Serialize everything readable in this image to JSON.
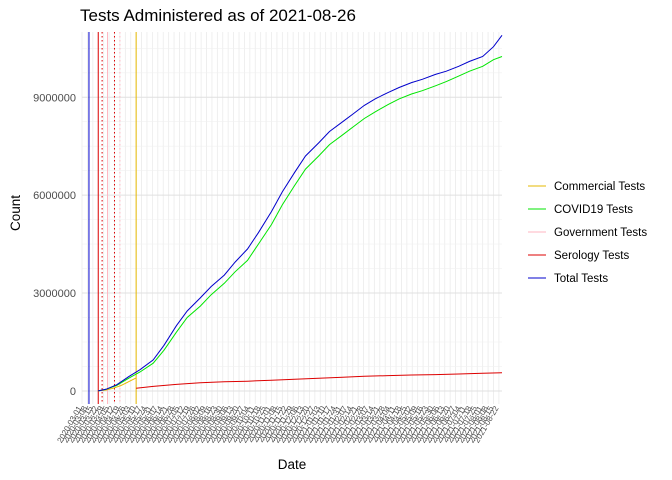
{
  "chart_data": {
    "type": "line",
    "title": "Tests Administered as of 2021-08-26",
    "xlabel": "Date",
    "ylabel": "Count",
    "x_range": [
      "2020-03-01",
      "2021-08-26"
    ],
    "ylim": [
      -400000,
      11000000
    ],
    "yticks": [
      {
        "value": 0,
        "label": "0"
      },
      {
        "value": 3000000,
        "label": "3000000"
      },
      {
        "value": 6000000,
        "label": "6000000"
      },
      {
        "value": 9000000,
        "label": "9000000"
      }
    ],
    "grid": true,
    "legend_position": "right",
    "series": [
      {
        "name": "Commercial Tests",
        "color": "#e6b800",
        "x": [
          "2020-03-22",
          "2020-04-01",
          "2020-04-10",
          "2020-04-20",
          "2020-04-30",
          "2020-05-10"
        ],
        "y": [
          0,
          30000,
          80000,
          160000,
          280000,
          400000
        ]
      },
      {
        "name": "COVID19 Tests",
        "color": "#00e600",
        "x": [
          "2020-03-22",
          "2020-04-01",
          "2020-04-15",
          "2020-05-01",
          "2020-05-15",
          "2020-06-01",
          "2020-06-15",
          "2020-07-01",
          "2020-07-15",
          "2020-08-01",
          "2020-08-15",
          "2020-09-01",
          "2020-09-15",
          "2020-10-01",
          "2020-10-15",
          "2020-11-01",
          "2020-11-15",
          "2020-12-01",
          "2020-12-15",
          "2021-01-01",
          "2021-01-15",
          "2021-02-01",
          "2021-02-15",
          "2021-03-01",
          "2021-03-15",
          "2021-04-01",
          "2021-04-15",
          "2021-05-01",
          "2021-05-15",
          "2021-06-01",
          "2021-06-15",
          "2021-07-01",
          "2021-07-15",
          "2021-08-01",
          "2021-08-15",
          "2021-08-26"
        ],
        "y": [
          0,
          50000,
          170000,
          400000,
          580000,
          850000,
          1250000,
          1800000,
          2250000,
          2600000,
          2950000,
          3300000,
          3650000,
          4000000,
          4500000,
          5100000,
          5700000,
          6300000,
          6800000,
          7200000,
          7550000,
          7850000,
          8100000,
          8350000,
          8550000,
          8780000,
          8950000,
          9100000,
          9200000,
          9350000,
          9480000,
          9650000,
          9800000,
          9950000,
          10150000,
          10250000
        ]
      },
      {
        "name": "Government Tests",
        "color": "#ffb6c1",
        "x": [],
        "y": []
      },
      {
        "name": "Serology Tests",
        "color": "#dd0000",
        "x": [
          "2020-05-10",
          "2020-06-01",
          "2020-07-01",
          "2020-08-01",
          "2020-09-01",
          "2020-10-01",
          "2020-11-01",
          "2020-12-01",
          "2021-01-01",
          "2021-02-01",
          "2021-03-01",
          "2021-04-01",
          "2021-05-01",
          "2021-06-01",
          "2021-07-01",
          "2021-08-01",
          "2021-08-26"
        ],
        "y": [
          80000,
          140000,
          200000,
          250000,
          280000,
          300000,
          330000,
          360000,
          390000,
          420000,
          450000,
          470000,
          490000,
          500000,
          520000,
          540000,
          560000
        ]
      },
      {
        "name": "Total Tests",
        "color": "#0000cc",
        "x": [
          "2020-03-22",
          "2020-04-01",
          "2020-04-15",
          "2020-05-01",
          "2020-05-15",
          "2020-06-01",
          "2020-06-15",
          "2020-07-01",
          "2020-07-15",
          "2020-08-01",
          "2020-08-15",
          "2020-09-01",
          "2020-09-15",
          "2020-10-01",
          "2020-10-15",
          "2020-11-01",
          "2020-11-15",
          "2020-12-01",
          "2020-12-15",
          "2021-01-01",
          "2021-01-15",
          "2021-02-01",
          "2021-02-15",
          "2021-03-01",
          "2021-03-15",
          "2021-04-01",
          "2021-04-15",
          "2021-05-01",
          "2021-05-15",
          "2021-06-01",
          "2021-06-15",
          "2021-07-01",
          "2021-07-15",
          "2021-08-01",
          "2021-08-15",
          "2021-08-26"
        ],
        "y": [
          0,
          50000,
          190000,
          450000,
          650000,
          950000,
          1400000,
          2000000,
          2450000,
          2850000,
          3200000,
          3550000,
          3950000,
          4350000,
          4850000,
          5500000,
          6100000,
          6700000,
          7200000,
          7600000,
          7950000,
          8250000,
          8500000,
          8750000,
          8950000,
          9150000,
          9300000,
          9450000,
          9550000,
          9700000,
          9800000,
          9950000,
          10100000,
          10250000,
          10550000,
          10900000
        ]
      }
    ],
    "vlines": [
      {
        "x": "2020-03-10",
        "color": "#0000cc",
        "style": "solid"
      },
      {
        "x": "2020-03-22",
        "color": "#dd0000",
        "style": "solid"
      },
      {
        "x": "2020-03-27",
        "color": "#dd0000",
        "style": "dotted"
      },
      {
        "x": "2020-04-03",
        "color": "#ffb6c1",
        "style": "solid"
      },
      {
        "x": "2020-04-12",
        "color": "#dd0000",
        "style": "dotted"
      },
      {
        "x": "2020-04-19",
        "color": "#ffb6c1",
        "style": "dotted"
      },
      {
        "x": "2020-05-10",
        "color": "#e6b800",
        "style": "solid"
      }
    ]
  }
}
